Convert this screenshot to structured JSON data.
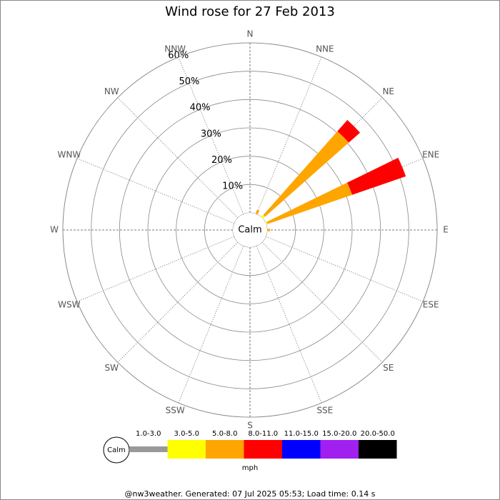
{
  "chart_data": {
    "type": "windrose",
    "title": "Wind rose for 27 Feb 2013",
    "directions": [
      "N",
      "NNE",
      "NE",
      "ENE",
      "E",
      "ESE",
      "SE",
      "SSE",
      "S",
      "SSW",
      "SW",
      "WSW",
      "W",
      "WNW",
      "NW",
      "NNW"
    ],
    "calm_label": "Calm",
    "unit": "mph",
    "footer": "@nw3weather. Generated: 07 Jul 2025 05:53; Load time: 0.14 s",
    "rlim": [
      0,
      60
    ],
    "rticks": [
      {
        "value": 10,
        "label": "10%"
      },
      {
        "value": 20,
        "label": "20%"
      },
      {
        "value": 30,
        "label": "30%"
      },
      {
        "value": 40,
        "label": "40%"
      },
      {
        "value": 50,
        "label": "50%"
      },
      {
        "value": 60,
        "label": "60%"
      }
    ],
    "series": [
      {
        "name": "1.0-3.0",
        "color": "#999999",
        "values": [
          0,
          0,
          0,
          0,
          0,
          0,
          0,
          0,
          0,
          0,
          0,
          0,
          0,
          0,
          0,
          0
        ]
      },
      {
        "name": "3.0-5.0",
        "color": "#ffff00",
        "values": [
          0,
          0,
          1,
          0.5,
          0,
          0,
          0,
          0,
          0,
          0,
          0,
          0,
          0,
          0,
          0,
          0
        ]
      },
      {
        "name": "5.0-8.0",
        "color": "#ffa500",
        "values": [
          0,
          1.5,
          39.5,
          31.6,
          1,
          0,
          0,
          0,
          0,
          0,
          0,
          0,
          0,
          0,
          0,
          0
        ]
      },
      {
        "name": "8.0-11.0",
        "color": "#ff0000",
        "values": [
          0,
          0,
          5.3,
          20,
          0,
          0,
          0,
          0,
          0,
          0,
          0,
          0,
          0,
          0,
          0,
          0
        ]
      },
      {
        "name": "11.0-15.0",
        "color": "#0000ff",
        "values": [
          0,
          0,
          0,
          0,
          0,
          0,
          0,
          0,
          0,
          0,
          0,
          0,
          0,
          0,
          0,
          0
        ]
      },
      {
        "name": "15.0-20.0",
        "color": "#a020f0",
        "values": [
          0,
          0,
          0,
          0,
          0,
          0,
          0,
          0,
          0,
          0,
          0,
          0,
          0,
          0,
          0,
          0
        ]
      },
      {
        "name": "20.0-50.0",
        "color": "#000000",
        "values": [
          0,
          0,
          0,
          0,
          0,
          0,
          0,
          0,
          0,
          0,
          0,
          0,
          0,
          0,
          0,
          0
        ]
      }
    ]
  }
}
